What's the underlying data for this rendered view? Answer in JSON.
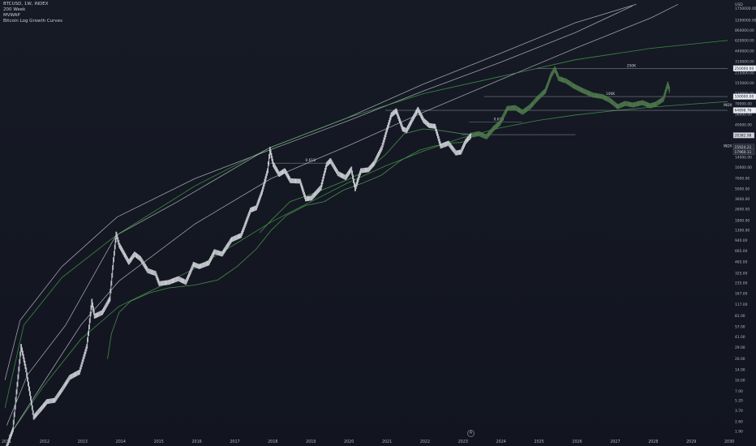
{
  "legend": {
    "symbol_line": "BTCUSD, 1W, INDEX",
    "indicator_1": "200 Week",
    "indicator_2": "MVWAP",
    "indicator_3": "Bitcoin Log Growth Curves"
  },
  "axis_button": "A",
  "colors": {
    "background": "#131722",
    "candle": "#cfd2d8",
    "projection": "#4f7a4c",
    "white_curve": "#c8ccd4",
    "green_curve": "#4caf50",
    "ma_line": "#4a8a4a"
  },
  "chart_data": {
    "type": "line",
    "title": "",
    "xlabel": "",
    "ylabel": "",
    "y_scale": "log",
    "currency_label": "USD",
    "x_ticks": [
      "2011",
      "2012",
      "2013",
      "2014",
      "2015",
      "2016",
      "2017",
      "2018",
      "2019",
      "2020",
      "2021",
      "2022",
      "2023",
      "2024",
      "2025",
      "2026",
      "2027",
      "2028",
      "2029",
      "2030"
    ],
    "y_ticks": [
      "1750000.00",
      "1200000.00",
      "860000.00",
      "620000.00",
      "440000.00",
      "310000.00",
      "215000.00",
      "155000.00",
      "110000.00",
      "79000.00",
      "56000.00",
      "40000.00",
      "29000.00",
      "20000.00",
      "14000.00",
      "10000.00",
      "7000.00",
      "5000.00",
      "3600.00",
      "2600.00",
      "1800.00",
      "1300.00",
      "940.00",
      "665.00",
      "465.00",
      "325.00",
      "235.00",
      "167.00",
      "117.00",
      "81.00",
      "57.00",
      "41.00",
      "29.00",
      "20.00",
      "14.00",
      "10.00",
      "7.00",
      "5.20",
      "3.70",
      "2.60",
      "1.90"
    ],
    "xlim": [
      2011.0,
      2030.0
    ],
    "ylim": [
      1.62,
      2300000
    ],
    "series": [
      {
        "name": "BTCUSD",
        "points": [
          [
            2011.0,
            1.0
          ],
          [
            2011.2,
            2
          ],
          [
            2011.42,
            30
          ],
          [
            2011.55,
            14
          ],
          [
            2011.75,
            3
          ],
          [
            2011.95,
            4
          ],
          [
            2012.1,
            5
          ],
          [
            2012.3,
            5.2
          ],
          [
            2012.5,
            7.5
          ],
          [
            2012.7,
            11
          ],
          [
            2012.95,
            13
          ],
          [
            2013.15,
            30
          ],
          [
            2013.28,
            130
          ],
          [
            2013.35,
            80
          ],
          [
            2013.55,
            90
          ],
          [
            2013.75,
            140
          ],
          [
            2013.85,
            500
          ],
          [
            2013.92,
            1150
          ],
          [
            2014.0,
            800
          ],
          [
            2014.1,
            640
          ],
          [
            2014.25,
            460
          ],
          [
            2014.4,
            600
          ],
          [
            2014.55,
            520
          ],
          [
            2014.75,
            350
          ],
          [
            2014.95,
            320
          ],
          [
            2015.05,
            230
          ],
          [
            2015.3,
            240
          ],
          [
            2015.55,
            270
          ],
          [
            2015.75,
            240
          ],
          [
            2015.95,
            430
          ],
          [
            2016.1,
            400
          ],
          [
            2016.35,
            450
          ],
          [
            2016.5,
            650
          ],
          [
            2016.7,
            600
          ],
          [
            2016.95,
            960
          ],
          [
            2017.2,
            1100
          ],
          [
            2017.45,
            2500
          ],
          [
            2017.6,
            2700
          ],
          [
            2017.75,
            4500
          ],
          [
            2017.9,
            9000
          ],
          [
            2017.96,
            18000
          ],
          [
            2018.05,
            11000
          ],
          [
            2018.2,
            8000
          ],
          [
            2018.35,
            9000
          ],
          [
            2018.5,
            6500
          ],
          [
            2018.75,
            6400
          ],
          [
            2018.9,
            3600
          ],
          [
            2019.05,
            3700
          ],
          [
            2019.3,
            5200
          ],
          [
            2019.45,
            11000
          ],
          [
            2019.55,
            12500
          ],
          [
            2019.75,
            8200
          ],
          [
            2019.95,
            7200
          ],
          [
            2020.1,
            9500
          ],
          [
            2020.2,
            5000
          ],
          [
            2020.35,
            9000
          ],
          [
            2020.55,
            9300
          ],
          [
            2020.7,
            11500
          ],
          [
            2020.9,
            19000
          ],
          [
            2021.0,
            29000
          ],
          [
            2021.15,
            55000
          ],
          [
            2021.28,
            63000
          ],
          [
            2021.45,
            35000
          ],
          [
            2021.55,
            33000
          ],
          [
            2021.7,
            47000
          ],
          [
            2021.85,
            66000
          ],
          [
            2022.0,
            46000
          ],
          [
            2022.15,
            39000
          ],
          [
            2022.3,
            38000
          ],
          [
            2022.45,
            20000
          ],
          [
            2022.65,
            22000
          ],
          [
            2022.85,
            16000
          ],
          [
            2022.98,
            16500
          ],
          [
            2023.1,
            23000
          ],
          [
            2023.25,
            28500
          ]
        ]
      },
      {
        "name": "Projection",
        "points": [
          [
            2023.25,
            28500
          ],
          [
            2023.45,
            30000
          ],
          [
            2023.65,
            27000
          ],
          [
            2023.85,
            36000
          ],
          [
            2024.0,
            42000
          ],
          [
            2024.2,
            68000
          ],
          [
            2024.4,
            70000
          ],
          [
            2024.6,
            60000
          ],
          [
            2024.8,
            72000
          ],
          [
            2025.0,
            95000
          ],
          [
            2025.2,
            120000
          ],
          [
            2025.35,
            200000
          ],
          [
            2025.45,
            245000
          ],
          [
            2025.55,
            180000
          ],
          [
            2025.75,
            165000
          ],
          [
            2025.95,
            140000
          ],
          [
            2026.2,
            120000
          ],
          [
            2026.45,
            105000
          ],
          [
            2026.7,
            100000
          ],
          [
            2026.9,
            88000
          ],
          [
            2027.1,
            72000
          ],
          [
            2027.3,
            80000
          ],
          [
            2027.5,
            76000
          ],
          [
            2027.75,
            82000
          ],
          [
            2027.95,
            74000
          ],
          [
            2028.1,
            78000
          ],
          [
            2028.3,
            92000
          ],
          [
            2028.42,
            150000
          ],
          [
            2028.47,
            120000
          ]
        ]
      },
      {
        "name": "200 Week",
        "points": [
          [
            2013.7,
            20
          ],
          [
            2013.8,
            45
          ],
          [
            2014.0,
            90
          ],
          [
            2014.3,
            130
          ],
          [
            2014.8,
            170
          ],
          [
            2015.3,
            200
          ],
          [
            2016.0,
            220
          ],
          [
            2016.6,
            260
          ],
          [
            2017.1,
            400
          ],
          [
            2017.6,
            700
          ],
          [
            2018.0,
            1300
          ],
          [
            2018.4,
            2100
          ],
          [
            2018.9,
            2900
          ],
          [
            2019.4,
            3300
          ],
          [
            2019.9,
            4800
          ],
          [
            2020.4,
            6000
          ],
          [
            2020.9,
            7800
          ],
          [
            2021.4,
            12500
          ],
          [
            2021.9,
            17500
          ],
          [
            2022.2,
            19500
          ],
          [
            2022.6,
            22000
          ],
          [
            2023.0,
            22500
          ],
          [
            2023.25,
            25000
          ]
        ]
      },
      {
        "name": "MVWAP",
        "points": [
          [
            2017.7,
            1200
          ],
          [
            2018.0,
            1800
          ],
          [
            2018.5,
            3300
          ],
          [
            2019.0,
            4100
          ],
          [
            2019.5,
            5200
          ],
          [
            2020.0,
            6700
          ],
          [
            2020.5,
            9000
          ],
          [
            2021.0,
            15000
          ],
          [
            2021.5,
            30000
          ],
          [
            2022.0,
            35000
          ],
          [
            2022.5,
            33000
          ],
          [
            2023.0,
            30000
          ],
          [
            2023.25,
            29500
          ]
        ]
      }
    ],
    "growth_curves": [
      {
        "name": "white_1",
        "points": [
          [
            2011.0,
            10
          ],
          [
            2011.4,
            70
          ],
          [
            2012.5,
            400
          ],
          [
            2013.95,
            2000
          ],
          [
            2016.0,
            7000
          ],
          [
            2018.0,
            18000
          ],
          [
            2020.0,
            45000
          ],
          [
            2022.0,
            120000
          ],
          [
            2024.0,
            300000
          ],
          [
            2026.0,
            800000
          ],
          [
            2027.5,
            1900000
          ]
        ]
      },
      {
        "name": "white_2",
        "points": [
          [
            2011.05,
            2.3
          ],
          [
            2011.6,
            12
          ],
          [
            2012.6,
            60
          ],
          [
            2013.92,
            1100
          ],
          [
            2015.5,
            3200
          ],
          [
            2017.96,
            19000
          ],
          [
            2020.0,
            50000
          ],
          [
            2022.0,
            150000
          ],
          [
            2024.0,
            400000
          ],
          [
            2026.0,
            1100000
          ],
          [
            2027.6,
            2000000
          ]
        ]
      },
      {
        "name": "white_3",
        "points": [
          [
            2011.1,
            1.6
          ],
          [
            2012.0,
            9
          ],
          [
            2013.0,
            60
          ],
          [
            2014.0,
            250
          ],
          [
            2016.0,
            1600
          ],
          [
            2018.0,
            7000
          ],
          [
            2020.0,
            20000
          ],
          [
            2022.0,
            60000
          ],
          [
            2024.0,
            170000
          ],
          [
            2026.0,
            480000
          ],
          [
            2028.0,
            1300000
          ],
          [
            2028.7,
            2000000
          ]
        ]
      },
      {
        "name": "green_1",
        "points": [
          [
            2011.0,
            4
          ],
          [
            2011.5,
            60
          ],
          [
            2012.5,
            280
          ],
          [
            2013.92,
            1100
          ],
          [
            2016.0,
            5500
          ],
          [
            2017.96,
            19000
          ],
          [
            2020.0,
            50000
          ],
          [
            2022.0,
            110000
          ],
          [
            2024.0,
            190000
          ],
          [
            2026.0,
            330000
          ],
          [
            2028.0,
            480000
          ],
          [
            2030.0,
            620000
          ]
        ]
      },
      {
        "name": "green_2",
        "points": [
          [
            2011.1,
            1.6
          ],
          [
            2012.0,
            8
          ],
          [
            2013.0,
            38
          ],
          [
            2014.0,
            110
          ],
          [
            2015.0,
            200
          ],
          [
            2016.0,
            380
          ],
          [
            2017.0,
            800
          ],
          [
            2018.0,
            1700
          ],
          [
            2019.0,
            3200
          ],
          [
            2020.0,
            6000
          ],
          [
            2021.0,
            10500
          ],
          [
            2022.0,
            17000
          ],
          [
            2023.0,
            26000
          ],
          [
            2024.0,
            36000
          ],
          [
            2025.0,
            46000
          ],
          [
            2026.0,
            55000
          ],
          [
            2027.0,
            63000
          ],
          [
            2028.0,
            71000
          ],
          [
            2029.0,
            78000
          ],
          [
            2030.0,
            85000
          ]
        ]
      }
    ],
    "horizontal_levels": [
      {
        "value": 250000,
        "x0": 2025.0,
        "x1": 2030.0,
        "label": "250K",
        "label_x": 2027.35,
        "axis_tag": "250000.00"
      },
      {
        "value": 100000,
        "x0": 2023.6,
        "x1": 2030.0,
        "label": "100K",
        "label_x": 2026.8,
        "axis_tag": "100000.00"
      },
      {
        "value": 64000,
        "x0": 2021.0,
        "x1": 2030.0,
        "label": "",
        "axis_tag": "64898.76"
      },
      {
        "value": 44000,
        "x0": 2023.2,
        "x1": 2024.6,
        "label": "0.618",
        "label_x": 2023.85,
        "axis_tag": ""
      },
      {
        "value": 29000,
        "x0": 2023.0,
        "x1": 2026.0,
        "label": "",
        "axis_tag": ""
      },
      {
        "value": 11500,
        "x0": 2017.9,
        "x1": 2019.5,
        "label": "0.618",
        "label_x": 2018.9,
        "axis_tag": ""
      }
    ],
    "price_tags": [
      "28382.98",
      "15924.21",
      "17960.11"
    ],
    "right_markers": [
      "INDX",
      "INDX"
    ]
  }
}
